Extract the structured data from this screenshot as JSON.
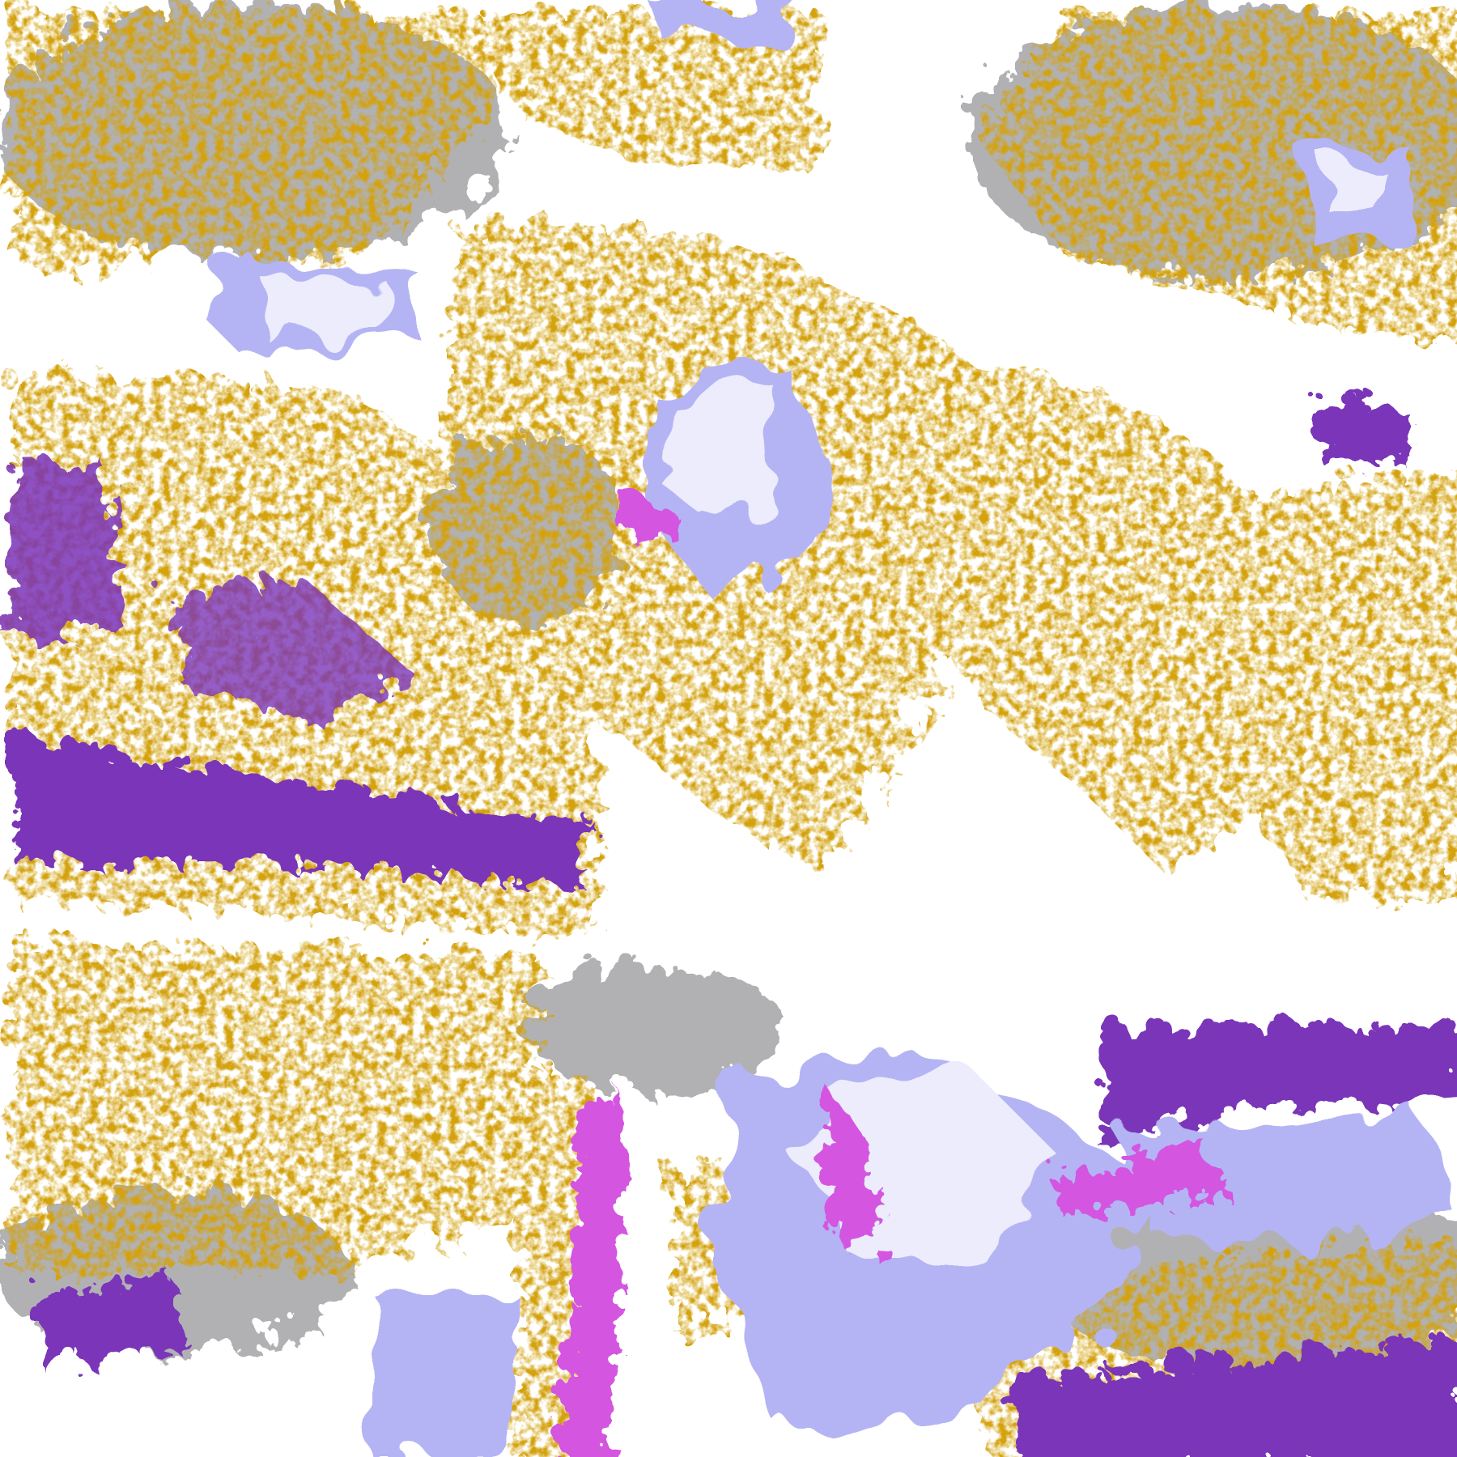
{
  "map": {
    "kind": "satellite cloud-type classification image",
    "colors": {
      "clear": "#ffffff",
      "low_cloud_gold": "#d4a208",
      "mid_cloud_purple": "#7a34b8",
      "high_cloud_magenta": "#d454e0",
      "cirrus_lavender": "#b4b4f4",
      "thick_cloud_pale": "#ececfc",
      "fractional_gray": "#a4a4a8"
    }
  }
}
